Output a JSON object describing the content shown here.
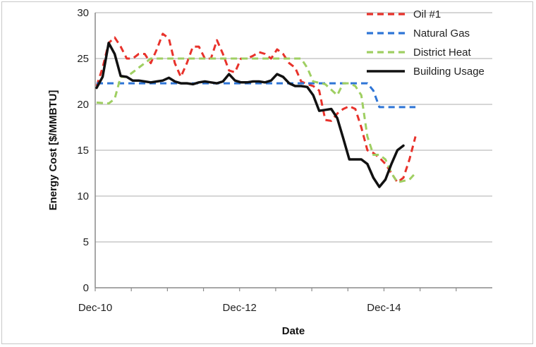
{
  "chart_data": {
    "type": "line",
    "title": "",
    "xlabel": "Date",
    "ylabel": "Energy Cost [$/MMBTU]",
    "ylim": [
      0,
      30
    ],
    "yticks": [
      "0",
      "5",
      "10",
      "15",
      "20",
      "25",
      "30"
    ],
    "xticks": [
      {
        "label": "Dec-10",
        "month": 0
      },
      {
        "label": "Dec-12",
        "month": 24
      },
      {
        "label": "Dec-14",
        "month": 48
      }
    ],
    "xlim_month": [
      0,
      66
    ],
    "grid": "horizontal",
    "legend_position": "top-right",
    "series": [
      {
        "name": "Oil #1",
        "color": "#e8322b",
        "dash": "dashed",
        "points": [
          [
            0,
            22.0
          ],
          [
            1,
            24.0
          ],
          [
            2,
            26.7
          ],
          [
            3,
            27.3
          ],
          [
            4,
            26.3
          ],
          [
            5,
            25.0
          ],
          [
            6,
            25.0
          ],
          [
            7,
            25.5
          ],
          [
            8,
            25.5
          ],
          [
            9,
            24.5
          ],
          [
            10,
            26.0
          ],
          [
            11,
            27.7
          ],
          [
            12,
            27.2
          ],
          [
            13,
            24.5
          ],
          [
            14,
            23.0
          ],
          [
            15,
            24.5
          ],
          [
            16,
            26.3
          ],
          [
            17,
            26.3
          ],
          [
            18,
            25.0
          ],
          [
            19,
            25.0
          ],
          [
            20,
            27.0
          ],
          [
            21,
            25.5
          ],
          [
            22,
            23.7
          ],
          [
            23,
            23.5
          ],
          [
            24,
            25.0
          ],
          [
            25,
            25.0
          ],
          [
            26,
            25.3
          ],
          [
            27,
            25.7
          ],
          [
            28,
            25.5
          ],
          [
            29,
            25.0
          ],
          [
            30,
            26.0
          ],
          [
            31,
            25.5
          ],
          [
            32,
            24.5
          ],
          [
            33,
            24.0
          ],
          [
            34,
            22.5
          ],
          [
            35,
            22.2
          ],
          [
            36,
            22.0
          ],
          [
            37,
            21.5
          ],
          [
            38,
            18.3
          ],
          [
            39,
            18.2
          ],
          [
            40,
            19.0
          ],
          [
            41,
            19.5
          ],
          [
            42,
            19.8
          ],
          [
            43,
            19.5
          ],
          [
            44,
            17.5
          ],
          [
            45,
            15.0
          ],
          [
            46,
            14.7
          ],
          [
            47,
            14.2
          ],
          [
            48,
            13.5
          ],
          [
            49,
            12.5
          ],
          [
            50,
            11.5
          ],
          [
            51,
            12.0
          ],
          [
            52,
            14.0
          ],
          [
            53,
            16.5
          ]
        ]
      },
      {
        "name": "Natural Gas",
        "color": "#2e75d6",
        "dash": "dashed",
        "points": [
          [
            0,
            22.3
          ],
          [
            5,
            22.3
          ],
          [
            10,
            22.3
          ],
          [
            15,
            22.3
          ],
          [
            20,
            22.3
          ],
          [
            25,
            22.3
          ],
          [
            30,
            22.3
          ],
          [
            35,
            22.3
          ],
          [
            40,
            22.3
          ],
          [
            44,
            22.3
          ],
          [
            45,
            22.3
          ],
          [
            46,
            21.5
          ],
          [
            47,
            19.7
          ],
          [
            49,
            19.7
          ],
          [
            51,
            19.7
          ],
          [
            53,
            19.7
          ]
        ]
      },
      {
        "name": "District Heat",
        "color": "#9fcf62",
        "dash": "dashed",
        "points": [
          [
            0,
            20.2
          ],
          [
            2,
            20.1
          ],
          [
            3,
            20.6
          ],
          [
            4,
            23.0
          ],
          [
            5,
            23.0
          ],
          [
            6,
            23.5
          ],
          [
            7,
            24.0
          ],
          [
            8,
            24.5
          ],
          [
            9,
            25.0
          ],
          [
            10,
            25.0
          ],
          [
            15,
            25.0
          ],
          [
            20,
            25.0
          ],
          [
            25,
            25.0
          ],
          [
            30,
            25.0
          ],
          [
            34,
            25.0
          ],
          [
            35,
            24.0
          ],
          [
            36,
            22.5
          ],
          [
            38,
            22.2
          ],
          [
            40,
            21.0
          ],
          [
            41,
            22.3
          ],
          [
            42,
            22.3
          ],
          [
            43,
            22.0
          ],
          [
            44,
            21.0
          ],
          [
            45,
            16.5
          ],
          [
            46,
            14.5
          ],
          [
            47,
            14.5
          ],
          [
            48,
            14.0
          ],
          [
            49,
            12.5
          ],
          [
            50,
            11.5
          ],
          [
            52,
            11.8
          ],
          [
            53,
            12.5
          ]
        ]
      },
      {
        "name": "Building Usage",
        "color": "#111111",
        "dash": "solid",
        "points": [
          [
            0,
            21.8
          ],
          [
            1,
            23.0
          ],
          [
            2,
            26.7
          ],
          [
            3,
            25.5
          ],
          [
            4,
            23.1
          ],
          [
            5,
            23.0
          ],
          [
            6,
            22.6
          ],
          [
            7,
            22.6
          ],
          [
            8,
            22.5
          ],
          [
            9,
            22.4
          ],
          [
            10,
            22.5
          ],
          [
            11,
            22.6
          ],
          [
            12,
            22.9
          ],
          [
            13,
            22.5
          ],
          [
            14,
            22.3
          ],
          [
            15,
            22.3
          ],
          [
            16,
            22.2
          ],
          [
            17,
            22.4
          ],
          [
            18,
            22.5
          ],
          [
            19,
            22.4
          ],
          [
            20,
            22.3
          ],
          [
            21,
            22.5
          ],
          [
            22,
            23.3
          ],
          [
            23,
            22.6
          ],
          [
            24,
            22.4
          ],
          [
            25,
            22.4
          ],
          [
            26,
            22.5
          ],
          [
            27,
            22.5
          ],
          [
            28,
            22.4
          ],
          [
            29,
            22.6
          ],
          [
            30,
            23.3
          ],
          [
            31,
            23.0
          ],
          [
            32,
            22.3
          ],
          [
            33,
            22.0
          ],
          [
            34,
            22.0
          ],
          [
            35,
            21.9
          ],
          [
            36,
            21.0
          ],
          [
            37,
            19.3
          ],
          [
            38,
            19.4
          ],
          [
            39,
            19.5
          ],
          [
            40,
            18.5
          ],
          [
            41,
            16.3
          ],
          [
            42,
            14.0
          ],
          [
            43,
            14.0
          ],
          [
            44,
            14.0
          ],
          [
            45,
            13.5
          ],
          [
            46,
            12.0
          ],
          [
            47,
            11.0
          ],
          [
            48,
            11.8
          ],
          [
            49,
            13.5
          ],
          [
            50,
            15.0
          ],
          [
            51,
            15.5
          ]
        ]
      }
    ]
  }
}
